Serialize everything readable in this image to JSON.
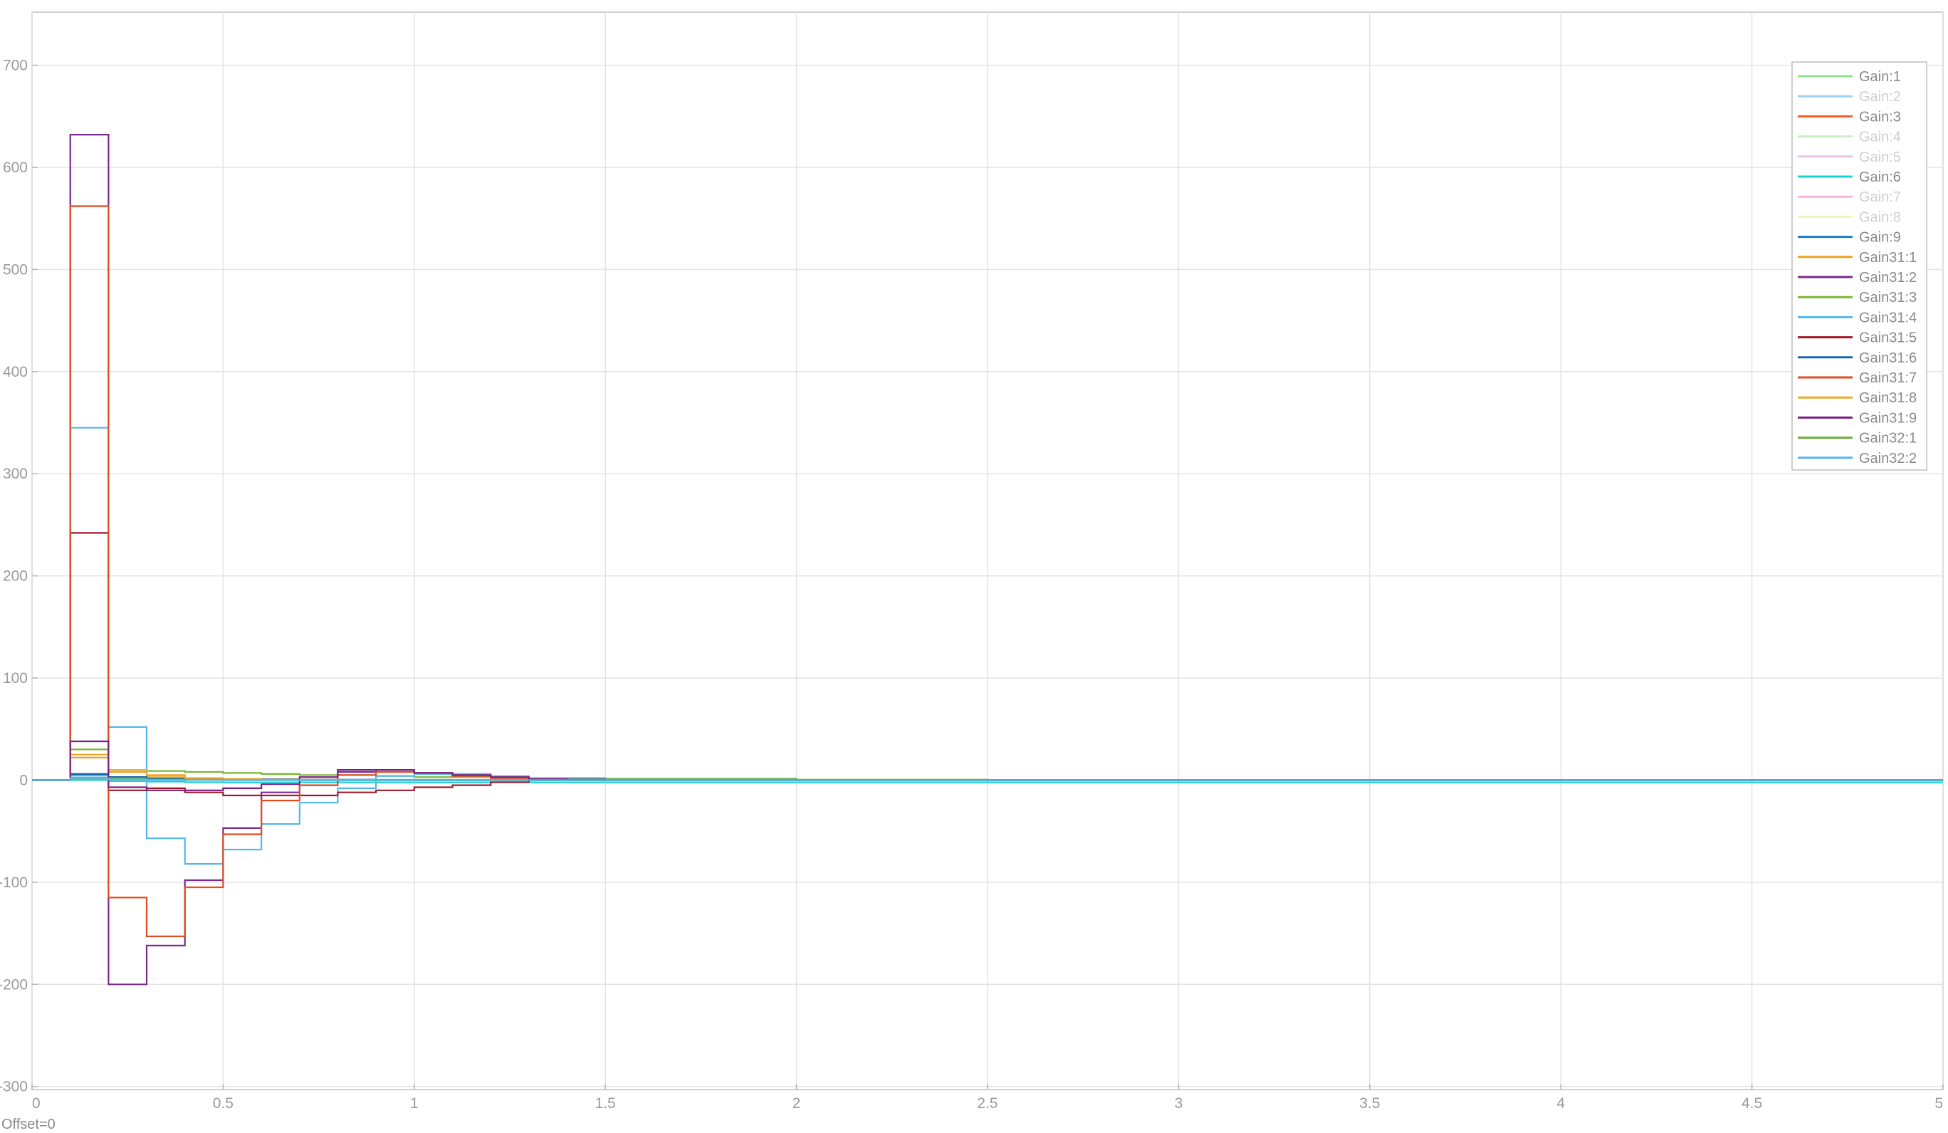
{
  "chart_data": {
    "type": "line",
    "step": true,
    "grid": true,
    "legend_position": "top-right",
    "xlim": [
      0,
      5
    ],
    "ylim": [
      -300,
      700
    ],
    "x_ticks": [
      0,
      0.5,
      1,
      1.5,
      2,
      2.5,
      3,
      3.5,
      4,
      4.5,
      5
    ],
    "x_tick_labels": [
      "0",
      "0.5",
      "1",
      "1.5",
      "2",
      "2.5",
      "3",
      "3.5",
      "4",
      "4.5",
      "5"
    ],
    "y_ticks": [
      -300,
      -200,
      -100,
      0,
      100,
      200,
      300,
      400,
      500,
      600,
      700
    ],
    "y_tick_labels": [
      "-300",
      "-200",
      "-100",
      "0",
      "100",
      "200",
      "300",
      "400",
      "500",
      "600",
      "700"
    ],
    "x": [
      0,
      0.1,
      0.2,
      0.3,
      0.4,
      0.5,
      0.6,
      0.7,
      0.8,
      0.9,
      1.0,
      1.1,
      1.2,
      1.3,
      1.4,
      1.5,
      2.0,
      2.5,
      3.0,
      5.0
    ],
    "series": [
      {
        "name": "Gain:1",
        "color": "#8fe08f",
        "faded": false,
        "values": [
          0,
          2,
          1,
          0.5,
          0.3,
          0.2,
          0.1,
          0,
          0,
          0,
          0,
          0,
          0,
          0,
          0,
          0,
          0,
          0,
          0,
          0
        ]
      },
      {
        "name": "Gain:2",
        "color": "#9fd0f5",
        "faded": true,
        "values": [
          0,
          3,
          1,
          0.5,
          0.3,
          0.2,
          0.1,
          0,
          0,
          0,
          0,
          0,
          0,
          0,
          0,
          0,
          0,
          0,
          0,
          0
        ]
      },
      {
        "name": "Gain:3",
        "color": "#ff5a1f",
        "faded": false,
        "values": [
          0,
          6,
          3,
          1,
          0.5,
          0.3,
          0.2,
          0.1,
          0,
          0,
          0,
          0,
          0,
          0,
          0,
          0,
          0,
          0,
          0,
          0
        ]
      },
      {
        "name": "Gain:4",
        "color": "#c9f0c4",
        "faded": true,
        "values": [
          0,
          1,
          0.5,
          0.2,
          0.1,
          0,
          0,
          0,
          0,
          0,
          0,
          0,
          0,
          0,
          0,
          0,
          0,
          0,
          0,
          0
        ]
      },
      {
        "name": "Gain:5",
        "color": "#e9c3ea",
        "faded": true,
        "values": [
          0,
          1,
          0.5,
          0.2,
          0.1,
          0,
          0,
          0,
          0,
          0,
          0,
          0,
          0,
          0,
          0,
          0,
          0,
          0,
          0,
          0
        ]
      },
      {
        "name": "Gain:6",
        "color": "#16d6d0",
        "faded": false,
        "values": [
          0,
          0,
          -1,
          -1.5,
          -2,
          -2.2,
          -2.2,
          -2.2,
          -2.2,
          -2.2,
          -2.2,
          -2.2,
          -2.2,
          -2.2,
          -2.2,
          -2.2,
          -2.2,
          -2.2,
          -2.2,
          -2.2
        ]
      },
      {
        "name": "Gain:7",
        "color": "#f4b7d8",
        "faded": true,
        "values": [
          0,
          1,
          0.5,
          0.2,
          0.1,
          0,
          0,
          0,
          0,
          0,
          0,
          0,
          0,
          0,
          0,
          0,
          0,
          0,
          0,
          0
        ]
      },
      {
        "name": "Gain:8",
        "color": "#f6eebd",
        "faded": true,
        "values": [
          0,
          1,
          0.5,
          0.2,
          0.1,
          0,
          0,
          0,
          0,
          0,
          0,
          0,
          0,
          0,
          0,
          0,
          0,
          0,
          0,
          0
        ]
      },
      {
        "name": "Gain:9",
        "color": "#1a7fc9",
        "faded": false,
        "values": [
          0,
          5,
          3,
          2,
          1.5,
          1,
          1,
          0.5,
          0.5,
          0.3,
          0.3,
          0.2,
          0.2,
          0.1,
          0.1,
          0,
          0,
          0,
          0,
          0
        ]
      },
      {
        "name": "Gain31:1",
        "color": "#f0a01e",
        "faded": false,
        "values": [
          0,
          22,
          8,
          4,
          2,
          1,
          0.5,
          0.3,
          0.2,
          0.1,
          0,
          0,
          0,
          0,
          0,
          0,
          0,
          0,
          0,
          0
        ]
      },
      {
        "name": "Gain31:2",
        "color": "#7a2a8e",
        "faded": false,
        "values": [
          0,
          632,
          -200,
          -162,
          -98,
          -47,
          -12,
          -5,
          8,
          10,
          7,
          5,
          3,
          2,
          1,
          0.5,
          0,
          0,
          0,
          0
        ]
      },
      {
        "name": "Gain31:3",
        "color": "#79b833",
        "faded": false,
        "values": [
          0,
          30,
          10,
          9,
          8,
          7,
          6,
          5,
          5,
          4,
          3,
          3,
          2,
          2,
          2,
          1.5,
          0.5,
          0.2,
          0,
          0
        ]
      },
      {
        "name": "Gain31:4",
        "color": "#53b7ea",
        "faded": false,
        "values": [
          0,
          345,
          52,
          -57,
          -82,
          -68,
          -43,
          -22,
          -8,
          4,
          6,
          6,
          4,
          2,
          1,
          0.5,
          0,
          0,
          0,
          0
        ]
      },
      {
        "name": "Gain31:5",
        "color": "#a0182c",
        "faded": false,
        "values": [
          0,
          242,
          -10,
          -8,
          -12,
          -15,
          -15,
          -15,
          -12,
          -10,
          -7,
          -5,
          -2,
          0,
          0,
          0,
          0,
          0,
          0,
          0
        ]
      },
      {
        "name": "Gain31:6",
        "color": "#1469ad",
        "faded": false,
        "values": [
          0,
          6,
          3,
          1,
          0.5,
          0.3,
          0.2,
          0.1,
          0,
          0,
          0,
          0,
          0,
          0,
          0,
          0,
          0,
          0,
          0,
          0
        ]
      },
      {
        "name": "Gain31:7",
        "color": "#e24b1f",
        "faded": false,
        "values": [
          0,
          562,
          -115,
          -153,
          -105,
          -53,
          -20,
          -5,
          5,
          8,
          7,
          4,
          2,
          1,
          0,
          0,
          0,
          0,
          0,
          0
        ]
      },
      {
        "name": "Gain31:8",
        "color": "#f0aa2a",
        "faded": false,
        "values": [
          0,
          25,
          10,
          5,
          2,
          1,
          0.5,
          0.3,
          0.2,
          0.1,
          0,
          0,
          0,
          0,
          0,
          0,
          0,
          0,
          0,
          0
        ]
      },
      {
        "name": "Gain31:9",
        "color": "#7b1e83",
        "faded": false,
        "values": [
          0,
          38,
          -7,
          -10,
          -10,
          -8,
          -4,
          3,
          10,
          10,
          7,
          5,
          3,
          1,
          0.5,
          0,
          0,
          0,
          0,
          0
        ]
      },
      {
        "name": "Gain32:1",
        "color": "#6cae3a",
        "faded": false,
        "values": [
          0,
          2,
          1,
          0.5,
          0.3,
          0.2,
          0.1,
          0,
          0,
          0,
          0,
          0,
          0,
          0,
          0,
          0,
          0,
          0,
          0,
          0
        ]
      },
      {
        "name": "Gain32:2",
        "color": "#57b6ea",
        "faded": false,
        "values": [
          0,
          1,
          0.5,
          0.2,
          0.1,
          0,
          0,
          0,
          0,
          0,
          0,
          0,
          0,
          0,
          0,
          0,
          0,
          0,
          0,
          0
        ]
      }
    ]
  },
  "footer": {
    "offset_label": "Offset=0"
  }
}
